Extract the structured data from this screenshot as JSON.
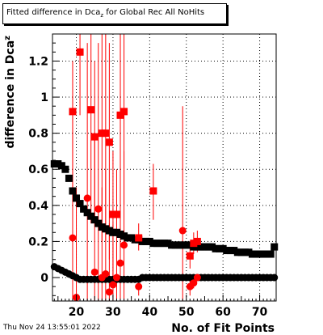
{
  "title": {
    "main": "Fitted difference in Dca",
    "sub": "z",
    "rest": " for Global Rec All NoHits"
  },
  "footer": "Thu Nov 24 13:55:01 2022",
  "colors": {
    "black_series": "#000000",
    "red_series": "#ff0000",
    "grid": "#000000",
    "background": "#ffffff"
  },
  "chart_data": {
    "type": "scatter",
    "xlabel": "No. of Fit Points",
    "ylabel_main": "difference in Dca",
    "ylabel_sub": "z",
    "xlim": [
      13.5,
      74.5
    ],
    "ylim": [
      -0.13,
      1.35
    ],
    "xticks": [
      20,
      30,
      40,
      50,
      60,
      70
    ],
    "yticks": [
      0,
      0.2,
      0.4,
      0.6,
      0.8,
      1,
      1.2
    ],
    "ytick_labels": [
      "0",
      "0.2",
      "0.4",
      "0.6",
      "0.8",
      "1",
      "1.2"
    ],
    "grid": true,
    "series": [
      {
        "marker": "square",
        "color": "#000000",
        "points": [
          [
            14,
            0.63
          ],
          [
            15,
            0.63
          ],
          [
            16,
            0.62
          ],
          [
            17,
            0.6
          ],
          [
            18,
            0.55
          ],
          [
            19,
            0.48
          ],
          [
            20,
            0.44
          ],
          [
            21,
            0.41
          ],
          [
            22,
            0.38
          ],
          [
            23,
            0.36
          ],
          [
            24,
            0.34
          ],
          [
            25,
            0.32
          ],
          [
            26,
            0.3
          ],
          [
            27,
            0.28
          ],
          [
            28,
            0.27
          ],
          [
            29,
            0.26
          ],
          [
            30,
            0.25
          ],
          [
            31,
            0.25
          ],
          [
            32,
            0.24
          ],
          [
            33,
            0.23
          ],
          [
            34,
            0.22
          ],
          [
            35,
            0.22
          ],
          [
            36,
            0.21
          ],
          [
            37,
            0.21
          ],
          [
            38,
            0.2
          ],
          [
            39,
            0.2
          ],
          [
            40,
            0.2
          ],
          [
            41,
            0.19
          ],
          [
            42,
            0.19
          ],
          [
            43,
            0.19
          ],
          [
            44,
            0.19
          ],
          [
            45,
            0.19
          ],
          [
            46,
            0.18
          ],
          [
            47,
            0.18
          ],
          [
            48,
            0.18
          ],
          [
            49,
            0.18
          ],
          [
            50,
            0.18
          ],
          [
            51,
            0.18
          ],
          [
            52,
            0.17
          ],
          [
            53,
            0.17
          ],
          [
            54,
            0.17
          ],
          [
            55,
            0.17
          ],
          [
            56,
            0.17
          ],
          [
            57,
            0.17
          ],
          [
            58,
            0.16
          ],
          [
            59,
            0.16
          ],
          [
            60,
            0.16
          ],
          [
            61,
            0.15
          ],
          [
            62,
            0.15
          ],
          [
            63,
            0.15
          ],
          [
            64,
            0.14
          ],
          [
            65,
            0.14
          ],
          [
            66,
            0.14
          ],
          [
            67,
            0.14
          ],
          [
            68,
            0.13
          ],
          [
            69,
            0.13
          ],
          [
            70,
            0.13
          ],
          [
            71,
            0.13
          ],
          [
            72,
            0.13
          ],
          [
            73,
            0.13
          ],
          [
            74,
            0.17
          ]
        ]
      },
      {
        "marker": "circle",
        "color": "#000000",
        "points": [
          [
            14,
            0.06
          ],
          [
            15,
            0.05
          ],
          [
            16,
            0.04
          ],
          [
            17,
            0.03
          ],
          [
            18,
            0.02
          ],
          [
            19,
            0.01
          ],
          [
            20,
            0.0
          ],
          [
            21,
            -0.01
          ],
          [
            22,
            -0.01
          ],
          [
            23,
            -0.01
          ],
          [
            24,
            -0.01
          ],
          [
            25,
            -0.01
          ],
          [
            26,
            -0.01
          ],
          [
            27,
            -0.01
          ],
          [
            28,
            -0.01
          ],
          [
            29,
            -0.01
          ],
          [
            30,
            -0.01
          ],
          [
            31,
            -0.01
          ],
          [
            32,
            -0.01
          ],
          [
            33,
            -0.01
          ],
          [
            34,
            -0.01
          ],
          [
            35,
            -0.01
          ],
          [
            36,
            -0.01
          ],
          [
            37,
            -0.01
          ],
          [
            38,
            0.0
          ],
          [
            39,
            0.0
          ],
          [
            40,
            0.0
          ],
          [
            41,
            0.0
          ],
          [
            42,
            0.0
          ],
          [
            43,
            0.0
          ],
          [
            44,
            0.0
          ],
          [
            45,
            0.0
          ],
          [
            46,
            0.0
          ],
          [
            47,
            0.0
          ],
          [
            48,
            0.0
          ],
          [
            49,
            0.0
          ],
          [
            50,
            0.0
          ],
          [
            51,
            0.0
          ],
          [
            52,
            0.0
          ],
          [
            53,
            0.0
          ],
          [
            54,
            0.0
          ],
          [
            55,
            0.0
          ],
          [
            56,
            0.0
          ],
          [
            57,
            0.0
          ],
          [
            58,
            0.0
          ],
          [
            59,
            0.0
          ],
          [
            60,
            0.0
          ],
          [
            61,
            0.0
          ],
          [
            62,
            0.0
          ],
          [
            63,
            0.0
          ],
          [
            64,
            0.0
          ],
          [
            65,
            0.0
          ],
          [
            66,
            0.0
          ],
          [
            67,
            0.0
          ],
          [
            68,
            0.0
          ],
          [
            69,
            0.0
          ],
          [
            70,
            0.0
          ],
          [
            71,
            0.0
          ],
          [
            72,
            0.0
          ],
          [
            73,
            0.0
          ],
          [
            74,
            0.0
          ]
        ]
      },
      {
        "marker": "square",
        "color": "#ff0000",
        "points": [
          [
            19,
            0.92,
            1.2,
            0.5
          ],
          [
            21,
            1.25,
            1.6,
            0.9
          ],
          [
            24,
            0.93,
            1.4,
            0.3
          ],
          [
            25,
            0.78,
            1.2,
            0.3
          ],
          [
            27,
            0.8,
            1.4,
            0.2
          ],
          [
            28,
            0.8,
            1.4,
            0.2
          ],
          [
            29,
            0.75,
            1.3,
            0.1
          ],
          [
            30,
            0.35,
            0.7,
            -0.05
          ],
          [
            31,
            0.35,
            0.6,
            0.1
          ],
          [
            32,
            0.9,
            1.4,
            0.4
          ],
          [
            33,
            0.92,
            1.4,
            0.4
          ],
          [
            37,
            0.22,
            0.3,
            0.15
          ],
          [
            41,
            0.48,
            0.63,
            0.32
          ],
          [
            51,
            0.12,
            0.2,
            0.05
          ],
          [
            52,
            0.19,
            0.25,
            0.13
          ],
          [
            53,
            0.2,
            0.26,
            0.14
          ]
        ]
      },
      {
        "marker": "circle",
        "color": "#ff0000",
        "points": [
          [
            19,
            0.22,
            1.0,
            -0.13
          ],
          [
            20,
            -0.11,
            0.5,
            -0.13
          ],
          [
            23,
            0.44,
            1.3,
            -0.13
          ],
          [
            25,
            0.03,
            0.8,
            -0.13
          ],
          [
            26,
            0.38,
            1.3,
            -0.13
          ],
          [
            27,
            0.0,
            0.5,
            -0.13
          ],
          [
            28,
            0.02,
            0.6,
            -0.13
          ],
          [
            29,
            -0.08,
            0.3,
            -0.13
          ],
          [
            30,
            -0.04,
            0.3,
            -0.13
          ],
          [
            31,
            0.0,
            0.2,
            -0.13
          ],
          [
            32,
            0.08,
            0.4,
            -0.13
          ],
          [
            33,
            0.18,
            0.7,
            -0.13
          ],
          [
            37,
            -0.05,
            0.0,
            -0.1
          ],
          [
            49,
            0.26,
            0.95,
            -0.13
          ],
          [
            51,
            -0.05,
            0.0,
            -0.1
          ],
          [
            52,
            -0.03,
            0.0,
            -0.06
          ],
          [
            53,
            0.0,
            0.02,
            -0.02
          ]
        ]
      }
    ]
  }
}
